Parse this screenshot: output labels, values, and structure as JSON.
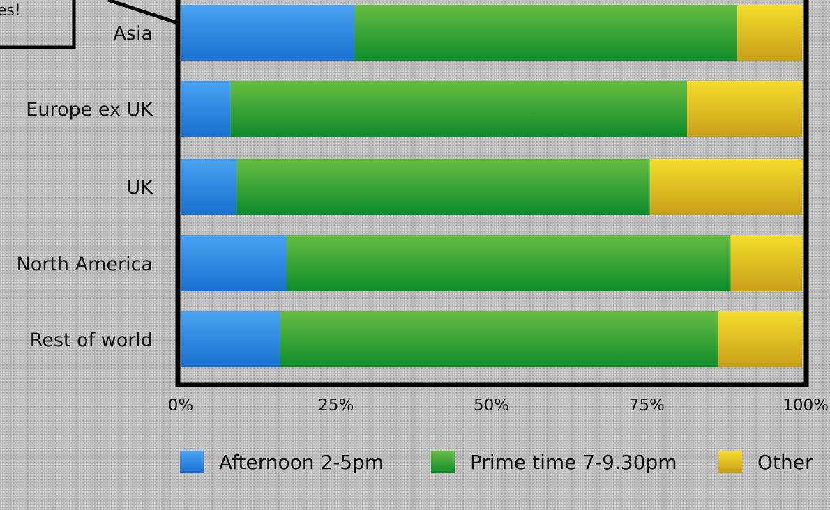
{
  "callout": {
    "text": "es!"
  },
  "chart_data": {
    "type": "bar",
    "orientation": "horizontal",
    "stacked": true,
    "percent": true,
    "categories": [
      "Asia",
      "Europe ex UK",
      "UK",
      "North America",
      "Rest of world"
    ],
    "series": [
      {
        "name": "Afternoon 2-5pm",
        "values": [
          28,
          8,
          9,
          17,
          16
        ],
        "color": "#2f8be6"
      },
      {
        "name": "Prime time 7-9.30pm",
        "values": [
          61.5,
          73.5,
          66.5,
          71.5,
          70.5
        ],
        "color": "#2fa52f"
      },
      {
        "name": "Other",
        "values": [
          10.5,
          18.5,
          24.5,
          11.5,
          13.5
        ],
        "color": "#e3bf1f"
      }
    ],
    "x_ticks": [
      "0%",
      "25%",
      "50%",
      "75%",
      "100%"
    ],
    "xlim": [
      0,
      100
    ],
    "legend_position": "bottom",
    "grid": false
  }
}
